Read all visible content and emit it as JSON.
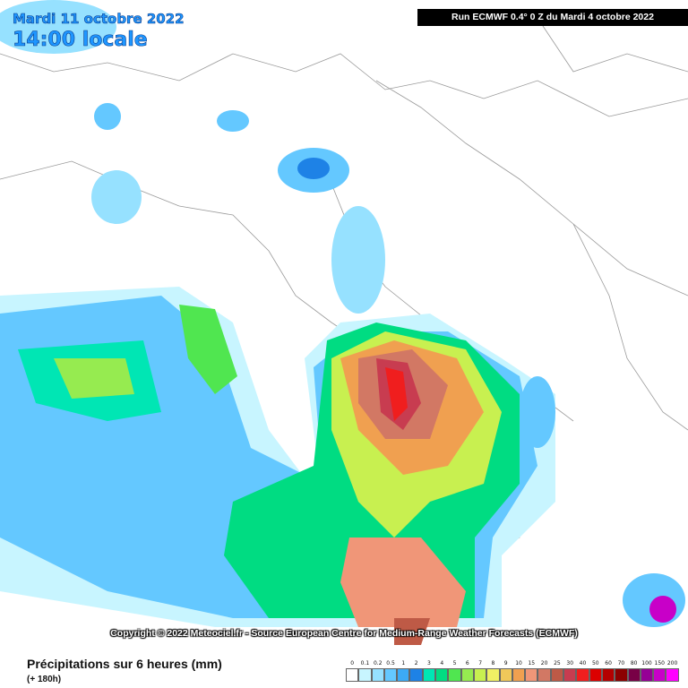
{
  "header": {
    "date": "Mardi 11 octobre 2022",
    "time": "14:00 locale",
    "run": "Run ECMWF 0.4° 0 Z du Mardi 4 octobre 2022"
  },
  "copyright": "Copyright © 2022 Meteociel.fr - Source European Centre for Medium-Range Weather Forecasts (ECMWF)",
  "legend": {
    "title": "Précipitations sur 6 heures (mm)",
    "lead": "(+ 180h)",
    "labels": [
      "0",
      "0.1",
      "0.2",
      "0.5",
      "1",
      "2",
      "3",
      "4",
      "5",
      "6",
      "7",
      "8",
      "9",
      "10",
      "15",
      "20",
      "25",
      "30",
      "40",
      "50",
      "60",
      "70",
      "80",
      "100",
      "150",
      "200"
    ],
    "colors": [
      "#ffffff",
      "#c8f5ff",
      "#96e1ff",
      "#64c8ff",
      "#3caaf5",
      "#1e82e6",
      "#00e6b4",
      "#00dc82",
      "#50e650",
      "#96eb50",
      "#c8f050",
      "#f0f064",
      "#f0c85a",
      "#f0a050",
      "#f09678",
      "#d27864",
      "#be5a46",
      "#c83c50",
      "#f01e1e",
      "#dc0000",
      "#b40000",
      "#8c0000",
      "#780046",
      "#960096",
      "#c800c8",
      "#ff00ff"
    ]
  }
}
